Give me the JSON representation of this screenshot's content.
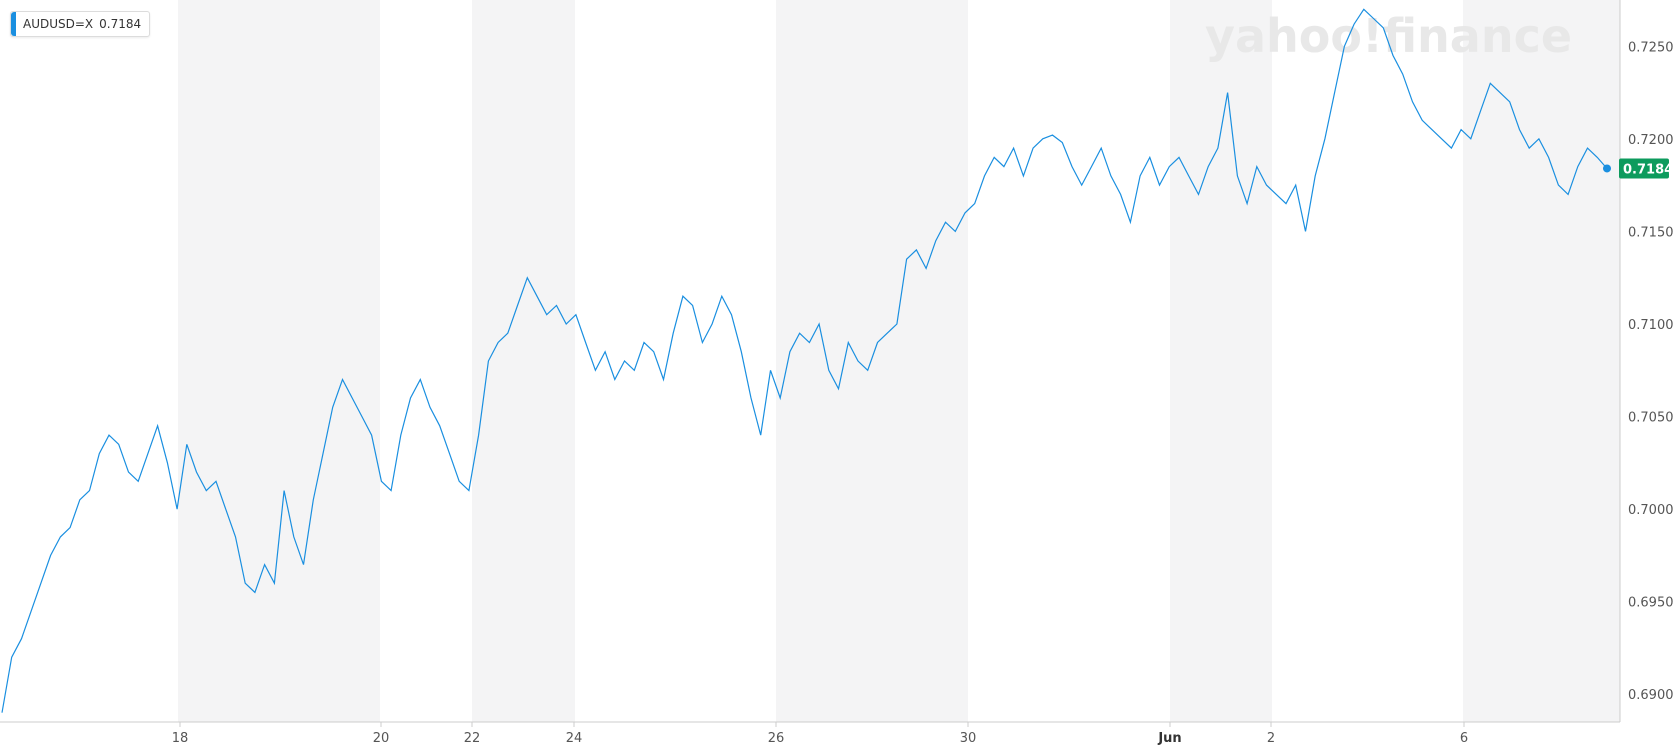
{
  "watermark": "yahoo!finance",
  "legend": {
    "symbol": "AUDUSD=X",
    "value": "0.7184"
  },
  "current_price_label": "0.7184",
  "colors": {
    "line": "#1a8fe0",
    "badge": "#0d9b5d",
    "shade": "#f4f4f5",
    "axis": "#cccccc"
  },
  "chart_data": {
    "type": "line",
    "title": "",
    "xlabel": "",
    "ylabel": "",
    "series_name": "AUDUSD=X",
    "x_ticks": [
      "18",
      "20",
      "22",
      "24",
      "26",
      "30",
      "Jun",
      "2",
      "6"
    ],
    "y_ticks": [
      "0.6900",
      "0.6950",
      "0.7000",
      "0.7050",
      "0.7100",
      "0.7150",
      "0.7200",
      "0.7250"
    ],
    "ylim": [
      0.6885,
      0.7275
    ],
    "grid": false,
    "y_axis_position": "right",
    "last_value": 0.7184,
    "series": [
      {
        "name": "AUDUSD=X",
        "points": [
          [
            "May 16",
            0.689
          ],
          [
            "May 16",
            0.692
          ],
          [
            "May 16",
            0.693
          ],
          [
            "May 16",
            0.6945
          ],
          [
            "May 16",
            0.696
          ],
          [
            "May 16",
            0.6975
          ],
          [
            "May 17",
            0.6985
          ],
          [
            "May 17",
            0.699
          ],
          [
            "May 17",
            0.7005
          ],
          [
            "May 17",
            0.701
          ],
          [
            "May 17",
            0.703
          ],
          [
            "May 17",
            0.704
          ],
          [
            "May 17",
            0.7035
          ],
          [
            "May 17",
            0.702
          ],
          [
            "May 17",
            0.7015
          ],
          [
            "May 17",
            0.703
          ],
          [
            "May 18",
            0.7045
          ],
          [
            "May 18",
            0.7025
          ],
          [
            "May 18",
            0.7
          ],
          [
            "May 18",
            0.7035
          ],
          [
            "May 18",
            0.702
          ],
          [
            "May 18",
            0.701
          ],
          [
            "May 18",
            0.7015
          ],
          [
            "May 18",
            0.7
          ],
          [
            "May 18",
            0.6985
          ],
          [
            "May 18",
            0.696
          ],
          [
            "May 19",
            0.6955
          ],
          [
            "May 19",
            0.697
          ],
          [
            "May 19",
            0.696
          ],
          [
            "May 19",
            0.701
          ],
          [
            "May 19",
            0.6985
          ],
          [
            "May 19",
            0.697
          ],
          [
            "May 19",
            0.7005
          ],
          [
            "May 19",
            0.703
          ],
          [
            "May 19",
            0.7055
          ],
          [
            "May 19",
            0.707
          ],
          [
            "May 20",
            0.706
          ],
          [
            "May 20",
            0.705
          ],
          [
            "May 20",
            0.704
          ],
          [
            "May 20",
            0.7015
          ],
          [
            "May 20",
            0.701
          ],
          [
            "May 20",
            0.704
          ],
          [
            "May 20",
            0.706
          ],
          [
            "May 21",
            0.707
          ],
          [
            "May 21",
            0.7055
          ],
          [
            "May 21",
            0.7045
          ],
          [
            "May 21",
            0.703
          ],
          [
            "May 21",
            0.7015
          ],
          [
            "May 21",
            0.701
          ],
          [
            "May 22",
            0.704
          ],
          [
            "May 22",
            0.708
          ],
          [
            "May 22",
            0.709
          ],
          [
            "May 22",
            0.7095
          ],
          [
            "May 22",
            0.711
          ],
          [
            "May 23",
            0.7125
          ],
          [
            "May 23",
            0.7115
          ],
          [
            "May 23",
            0.7105
          ],
          [
            "May 23",
            0.711
          ],
          [
            "May 23",
            0.71
          ],
          [
            "May 23",
            0.7105
          ],
          [
            "May 24",
            0.709
          ],
          [
            "May 24",
            0.7075
          ],
          [
            "May 24",
            0.7085
          ],
          [
            "May 24",
            0.707
          ],
          [
            "May 24",
            0.708
          ],
          [
            "May 24",
            0.7075
          ],
          [
            "May 24",
            0.709
          ],
          [
            "May 24",
            0.7085
          ],
          [
            "May 24",
            0.707
          ],
          [
            "May 25",
            0.7095
          ],
          [
            "May 25",
            0.7115
          ],
          [
            "May 25",
            0.711
          ],
          [
            "May 25",
            0.709
          ],
          [
            "May 25",
            0.71
          ],
          [
            "May 25",
            0.7115
          ],
          [
            "May 25",
            0.7105
          ],
          [
            "May 25",
            0.7085
          ],
          [
            "May 25",
            0.706
          ],
          [
            "May 25",
            0.704
          ],
          [
            "May 26",
            0.7075
          ],
          [
            "May 26",
            0.706
          ],
          [
            "May 26",
            0.7085
          ],
          [
            "May 26",
            0.7095
          ],
          [
            "May 26",
            0.709
          ],
          [
            "May 26",
            0.71
          ],
          [
            "May 26",
            0.7075
          ],
          [
            "May 26",
            0.7065
          ],
          [
            "May 27",
            0.709
          ],
          [
            "May 27",
            0.708
          ],
          [
            "May 27",
            0.7075
          ],
          [
            "May 27",
            0.709
          ],
          [
            "May 27",
            0.7095
          ],
          [
            "May 27",
            0.71
          ],
          [
            "May 27",
            0.7135
          ],
          [
            "May 28",
            0.714
          ],
          [
            "May 28",
            0.713
          ],
          [
            "May 28",
            0.7145
          ],
          [
            "May 28",
            0.7155
          ],
          [
            "May 28",
            0.715
          ],
          [
            "May 28",
            0.716
          ],
          [
            "May 30",
            0.7165
          ],
          [
            "May 30",
            0.718
          ],
          [
            "May 30",
            0.719
          ],
          [
            "May 30",
            0.7185
          ],
          [
            "May 30",
            0.7195
          ],
          [
            "May 30",
            0.718
          ],
          [
            "May 31",
            0.7195
          ],
          [
            "May 31",
            0.72
          ],
          [
            "May 31",
            0.7202
          ],
          [
            "May 31",
            0.7198
          ],
          [
            "May 31",
            0.7185
          ],
          [
            "May 31",
            0.7175
          ],
          [
            "May 31",
            0.7185
          ],
          [
            "May 31",
            0.7195
          ],
          [
            "May 31",
            0.718
          ],
          [
            "May 31",
            0.717
          ],
          [
            "May 31",
            0.7155
          ],
          [
            "May 31",
            0.718
          ],
          [
            "May 31",
            0.719
          ],
          [
            "May 31",
            0.7175
          ],
          [
            "May 31",
            0.7185
          ],
          [
            "Jun 1",
            0.719
          ],
          [
            "Jun 1",
            0.718
          ],
          [
            "Jun 1",
            0.717
          ],
          [
            "Jun 1",
            0.7185
          ],
          [
            "Jun 1",
            0.7195
          ],
          [
            "Jun 1",
            0.7225
          ],
          [
            "Jun 1",
            0.718
          ],
          [
            "Jun 1",
            0.7165
          ],
          [
            "Jun 1",
            0.7185
          ],
          [
            "Jun 1",
            0.7175
          ],
          [
            "Jun 1",
            0.717
          ],
          [
            "Jun 2",
            0.7165
          ],
          [
            "Jun 2",
            0.7175
          ],
          [
            "Jun 2",
            0.715
          ],
          [
            "Jun 2",
            0.718
          ],
          [
            "Jun 2",
            0.72
          ],
          [
            "Jun 2",
            0.7225
          ],
          [
            "Jun 3",
            0.725
          ],
          [
            "Jun 3",
            0.7262
          ],
          [
            "Jun 3",
            0.727
          ],
          [
            "Jun 3",
            0.7265
          ],
          [
            "Jun 3",
            0.726
          ],
          [
            "Jun 3",
            0.7245
          ],
          [
            "Jun 4",
            0.7235
          ],
          [
            "Jun 4",
            0.722
          ],
          [
            "Jun 4",
            0.721
          ],
          [
            "Jun 4",
            0.7205
          ],
          [
            "Jun 4",
            0.72
          ],
          [
            "Jun 5",
            0.7195
          ],
          [
            "Jun 5",
            0.7205
          ],
          [
            "Jun 5",
            0.72
          ],
          [
            "Jun 6",
            0.7215
          ],
          [
            "Jun 6",
            0.723
          ],
          [
            "Jun 6",
            0.7225
          ],
          [
            "Jun 6",
            0.722
          ],
          [
            "Jun 6",
            0.7205
          ],
          [
            "Jun 6",
            0.7195
          ],
          [
            "Jun 6",
            0.72
          ],
          [
            "Jun 7",
            0.719
          ],
          [
            "Jun 7",
            0.7175
          ],
          [
            "Jun 7",
            0.717
          ],
          [
            "Jun 7",
            0.7185
          ],
          [
            "Jun 7",
            0.7195
          ],
          [
            "Jun 7",
            0.719
          ],
          [
            "Jun 7",
            0.7184
          ]
        ]
      }
    ]
  }
}
